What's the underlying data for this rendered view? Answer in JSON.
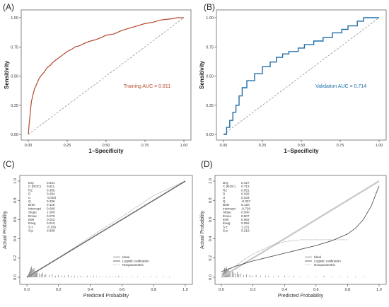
{
  "chart_data": [
    {
      "id": "A",
      "panel_label": "(A)",
      "type": "line",
      "xlabel": "1−Specificity",
      "ylabel": "Sensitivity",
      "xlim": [
        0,
        1
      ],
      "ylim": [
        0,
        1
      ],
      "x_ticks": [
        "0.00",
        "0.25",
        "0.50",
        "0.75",
        "1.00"
      ],
      "y_ticks": [
        "0.00",
        "0.25",
        "0.50",
        "0.75",
        "1.00"
      ],
      "annotation": "Training AUC = 0.811",
      "color": "#b5472b",
      "reference_line": "diagonal-dashed",
      "series": [
        {
          "x": [
            0,
            0.005,
            0.01,
            0.015,
            0.02,
            0.03,
            0.04,
            0.05,
            0.06,
            0.07,
            0.08,
            0.1,
            0.12,
            0.14,
            0.16,
            0.18,
            0.2,
            0.22,
            0.25,
            0.28,
            0.3,
            0.33,
            0.36,
            0.4,
            0.43,
            0.47,
            0.5,
            0.55,
            0.6,
            0.65,
            0.7,
            0.75,
            0.8,
            0.85,
            0.88,
            0.92,
            0.96,
            1.0
          ],
          "y": [
            0,
            0.08,
            0.15,
            0.22,
            0.28,
            0.34,
            0.39,
            0.42,
            0.45,
            0.48,
            0.5,
            0.53,
            0.57,
            0.59,
            0.62,
            0.64,
            0.66,
            0.68,
            0.71,
            0.73,
            0.75,
            0.76,
            0.78,
            0.8,
            0.81,
            0.83,
            0.85,
            0.86,
            0.89,
            0.91,
            0.93,
            0.95,
            0.96,
            0.98,
            0.985,
            0.99,
            1.0,
            1.0
          ]
        }
      ]
    },
    {
      "id": "B",
      "panel_label": "(B)",
      "type": "line",
      "xlabel": "1−Specificity",
      "ylabel": "Sensitivity",
      "xlim": [
        0,
        1
      ],
      "ylim": [
        0,
        1
      ],
      "x_ticks": [
        "0.00",
        "0.25",
        "0.50",
        "0.75",
        "1.00"
      ],
      "y_ticks": [
        "0.00",
        "0.25",
        "0.50",
        "0.75",
        "1.00"
      ],
      "annotation": "Validation AUC = 0.714",
      "color": "#1f6fa8",
      "reference_line": "diagonal-dashed",
      "series": [
        {
          "x": [
            0,
            0.02,
            0.02,
            0.04,
            0.04,
            0.06,
            0.06,
            0.08,
            0.08,
            0.1,
            0.1,
            0.12,
            0.12,
            0.15,
            0.15,
            0.2,
            0.2,
            0.25,
            0.25,
            0.3,
            0.3,
            0.34,
            0.34,
            0.38,
            0.38,
            0.42,
            0.42,
            0.48,
            0.48,
            0.52,
            0.52,
            0.58,
            0.58,
            0.64,
            0.64,
            0.7,
            0.7,
            0.76,
            0.76,
            0.8,
            0.8,
            0.86,
            0.86,
            0.9,
            0.9,
            1.0
          ],
          "y": [
            0,
            0,
            0.06,
            0.06,
            0.12,
            0.12,
            0.19,
            0.19,
            0.25,
            0.25,
            0.33,
            0.33,
            0.4,
            0.4,
            0.46,
            0.46,
            0.52,
            0.52,
            0.58,
            0.58,
            0.62,
            0.62,
            0.66,
            0.66,
            0.69,
            0.69,
            0.71,
            0.71,
            0.74,
            0.74,
            0.77,
            0.77,
            0.8,
            0.8,
            0.83,
            0.83,
            0.87,
            0.87,
            0.9,
            0.9,
            0.93,
            0.93,
            0.97,
            0.97,
            1.0,
            1.0
          ]
        }
      ]
    },
    {
      "id": "C",
      "panel_label": "(C)",
      "type": "line",
      "xlabel": "Predicted Probability",
      "ylabel": "Actual Probability",
      "xlim": [
        0,
        1
      ],
      "ylim": [
        0,
        1
      ],
      "x_ticks": [
        "0.0",
        "0.2",
        "0.4",
        "0.6",
        "0.8",
        "1.0"
      ],
      "y_ticks": [
        "0.0",
        "0.2",
        "0.4",
        "0.6",
        "0.8",
        "1.0"
      ],
      "stats": [
        {
          "name": "Dxy",
          "value": "0.621"
        },
        {
          "name": "C (ROC)",
          "value": "0.811"
        },
        {
          "name": "R2",
          "value": "0.305"
        },
        {
          "name": "D",
          "value": "0.294"
        },
        {
          "name": "U",
          "value": "-0.003"
        },
        {
          "name": "Q",
          "value": "0.296"
        },
        {
          "name": "Brier",
          "value": "0.116"
        },
        {
          "name": "Intercept",
          "value": "0.000"
        },
        {
          "name": "Slope",
          "value": "1.000"
        },
        {
          "name": "Emax",
          "value": "0.075"
        },
        {
          "name": "E90",
          "value": "0.022"
        },
        {
          "name": "Eavg",
          "value": "0.010"
        },
        {
          "name": "S:z",
          "value": "-0.156"
        },
        {
          "name": "S:p",
          "value": "0.908"
        }
      ],
      "legend": [
        "Ideal",
        "Logistic calibration",
        "Nonparametric"
      ],
      "series": [
        {
          "name": "Ideal",
          "x": [
            0,
            1
          ],
          "y": [
            0,
            1
          ]
        },
        {
          "name": "Logistic calibration",
          "x": [
            0,
            1
          ],
          "y": [
            0,
            1
          ]
        },
        {
          "name": "Nonparametric",
          "x": [
            0,
            0.2,
            0.4,
            0.6,
            0.8,
            1.0
          ],
          "y": [
            0,
            0.2,
            0.42,
            0.63,
            0.85,
            1.0
          ]
        }
      ],
      "rug": [
        [
          0.005,
          3
        ],
        [
          0.01,
          5
        ],
        [
          0.015,
          7
        ],
        [
          0.02,
          9
        ],
        [
          0.025,
          12
        ],
        [
          0.03,
          14
        ],
        [
          0.035,
          11
        ],
        [
          0.04,
          10
        ],
        [
          0.045,
          12
        ],
        [
          0.05,
          8
        ],
        [
          0.055,
          7
        ],
        [
          0.06,
          6
        ],
        [
          0.07,
          8
        ],
        [
          0.08,
          5
        ],
        [
          0.09,
          4
        ],
        [
          0.1,
          6
        ],
        [
          0.11,
          3
        ],
        [
          0.12,
          4
        ],
        [
          0.14,
          3
        ],
        [
          0.16,
          4
        ],
        [
          0.18,
          2
        ],
        [
          0.2,
          3
        ],
        [
          0.22,
          2
        ],
        [
          0.24,
          2
        ],
        [
          0.26,
          3
        ],
        [
          0.28,
          2
        ],
        [
          0.3,
          2
        ],
        [
          0.32,
          1
        ],
        [
          0.34,
          2
        ],
        [
          0.36,
          1
        ],
        [
          0.38,
          2
        ],
        [
          0.4,
          1
        ],
        [
          0.42,
          2
        ],
        [
          0.44,
          1
        ],
        [
          0.46,
          1
        ],
        [
          0.48,
          1
        ],
        [
          0.5,
          1
        ],
        [
          0.52,
          1
        ],
        [
          0.54,
          1
        ],
        [
          0.56,
          1
        ],
        [
          0.58,
          2
        ],
        [
          0.6,
          1
        ],
        [
          0.63,
          1
        ],
        [
          0.66,
          1
        ],
        [
          0.7,
          1
        ],
        [
          0.74,
          1
        ],
        [
          0.78,
          1
        ],
        [
          0.82,
          1
        ],
        [
          0.86,
          1
        ],
        [
          0.9,
          1
        ]
      ]
    },
    {
      "id": "D",
      "panel_label": "(D)",
      "type": "line",
      "xlabel": "Predicted Probability",
      "ylabel": "Actual Probability",
      "xlim": [
        0,
        1
      ],
      "ylim": [
        0,
        1
      ],
      "x_ticks": [
        "0.0",
        "0.2",
        "0.4",
        "0.6",
        "0.8",
        "1.0"
      ],
      "y_ticks": [
        "0.0",
        "0.2",
        "0.4",
        "0.6",
        "0.8",
        "1.0"
      ],
      "stats": [
        {
          "name": "Dxy",
          "value": "0.427"
        },
        {
          "name": "C (ROC)",
          "value": "0.713"
        },
        {
          "name": "R2",
          "value": "0.051"
        },
        {
          "name": "D",
          "value": "0.026"
        },
        {
          "name": "U",
          "value": "0.033"
        },
        {
          "name": "Q",
          "value": "-0.007"
        },
        {
          "name": "Brier",
          "value": "0.120"
        },
        {
          "name": "Intercept",
          "value": "-0.726"
        },
        {
          "name": "Slope",
          "value": "0.540"
        },
        {
          "name": "Emax",
          "value": "0.507"
        },
        {
          "name": "E90",
          "value": "0.062"
        },
        {
          "name": "Eavg",
          "value": "0.052"
        },
        {
          "name": "S:z",
          "value": "1.231"
        },
        {
          "name": "S:p",
          "value": "0.218"
        }
      ],
      "legend": [
        "Ideal",
        "Logistic calibration",
        "Nonparametric"
      ],
      "series": [
        {
          "name": "Ideal",
          "x": [
            0,
            1
          ],
          "y": [
            0,
            1
          ]
        },
        {
          "name": "Logistic calibration",
          "x": [
            0,
            0.05,
            0.1,
            0.2,
            0.3,
            0.4,
            0.5,
            0.6,
            0.7,
            0.8,
            0.85,
            0.9,
            0.95,
            1.0
          ],
          "y": [
            0.06,
            0.09,
            0.12,
            0.17,
            0.21,
            0.25,
            0.29,
            0.33,
            0.38,
            0.45,
            0.51,
            0.6,
            0.74,
            0.95
          ]
        },
        {
          "name": "Nonparametric",
          "x": [
            0,
            0.05,
            0.1,
            0.15,
            0.2,
            0.3,
            0.4,
            0.5,
            0.6,
            0.7,
            0.8
          ],
          "y": [
            0.04,
            0.08,
            0.13,
            0.19,
            0.24,
            0.32,
            0.37,
            0.39,
            0.39,
            0.39,
            0.39
          ]
        }
      ],
      "rug": [
        [
          0.005,
          4
        ],
        [
          0.01,
          6
        ],
        [
          0.015,
          9
        ],
        [
          0.02,
          12
        ],
        [
          0.025,
          10
        ],
        [
          0.03,
          14
        ],
        [
          0.035,
          12
        ],
        [
          0.04,
          9
        ],
        [
          0.045,
          11
        ],
        [
          0.05,
          8
        ],
        [
          0.06,
          7
        ],
        [
          0.07,
          9
        ],
        [
          0.08,
          6
        ],
        [
          0.09,
          5
        ],
        [
          0.1,
          7
        ],
        [
          0.11,
          4
        ],
        [
          0.12,
          5
        ],
        [
          0.14,
          3
        ],
        [
          0.16,
          4
        ],
        [
          0.18,
          3
        ],
        [
          0.2,
          2
        ],
        [
          0.22,
          3
        ],
        [
          0.25,
          2
        ],
        [
          0.28,
          2
        ],
        [
          0.3,
          2
        ],
        [
          0.33,
          1
        ],
        [
          0.36,
          2
        ],
        [
          0.4,
          2
        ],
        [
          0.43,
          1
        ],
        [
          0.46,
          2
        ],
        [
          0.5,
          1
        ],
        [
          0.55,
          1
        ],
        [
          0.6,
          1
        ],
        [
          0.65,
          2
        ],
        [
          0.7,
          1
        ],
        [
          0.75,
          1
        ],
        [
          0.8,
          1
        ],
        [
          0.85,
          1
        ],
        [
          0.9,
          1
        ]
      ]
    }
  ]
}
